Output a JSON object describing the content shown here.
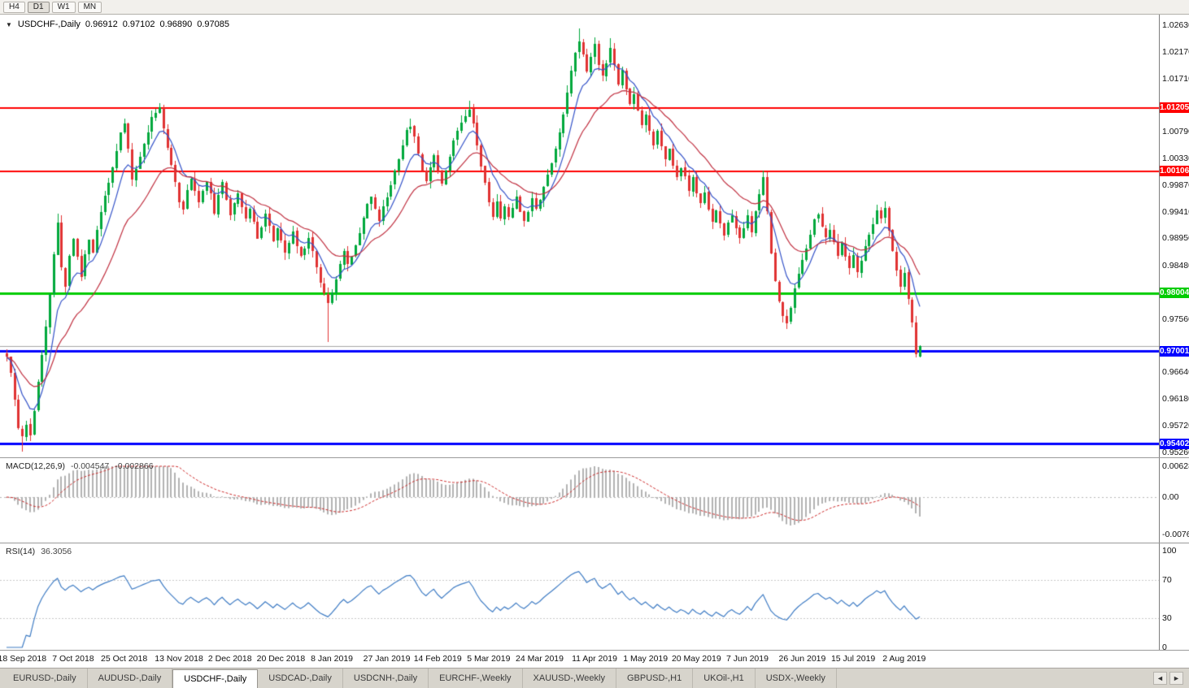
{
  "toolbar": {
    "timeframes": [
      {
        "label": "H4",
        "active": false
      },
      {
        "label": "D1",
        "active": true
      },
      {
        "label": "W1",
        "active": false
      },
      {
        "label": "MN",
        "active": false
      }
    ]
  },
  "chart_header": {
    "menu_icon": "▼",
    "symbol": "USDCHF-,Daily",
    "open": "0.96912",
    "high": "0.97102",
    "low": "0.96890",
    "close": "0.97085"
  },
  "price_axis": {
    "labels": [
      {
        "text": "1.02630",
        "price": 1.0263
      },
      {
        "text": "1.02170",
        "price": 1.0217
      },
      {
        "text": "1.01710",
        "price": 1.0171
      },
      {
        "text": "1.00790",
        "price": 1.0079
      },
      {
        "text": "1.00330",
        "price": 1.0033
      },
      {
        "text": "0.99870",
        "price": 0.9987
      },
      {
        "text": "0.99410",
        "price": 0.9941
      },
      {
        "text": "0.98950",
        "price": 0.9895
      },
      {
        "text": "0.98480",
        "price": 0.9848
      },
      {
        "text": "0.97560",
        "price": 0.9756
      },
      {
        "text": "0.96640",
        "price": 0.9664
      },
      {
        "text": "0.96180",
        "price": 0.9618
      },
      {
        "text": "0.95720",
        "price": 0.9572
      },
      {
        "text": "0.95260",
        "price": 0.9526
      }
    ]
  },
  "levels": [
    {
      "label": "1.01205",
      "price": 1.01205,
      "color": "#ff0000",
      "thickness": 2
    },
    {
      "label": "1.00106",
      "price": 1.00106,
      "color": "#ff0000",
      "thickness": 2
    },
    {
      "label": "0.98004",
      "price": 0.98004,
      "color": "#00cc00",
      "thickness": 3
    },
    {
      "label": "0.97001",
      "price": 0.97001,
      "color": "#0000ff",
      "thickness": 3
    },
    {
      "label": "0.95402",
      "price": 0.95402,
      "color": "#0000ff",
      "thickness": 3
    }
  ],
  "current_price": {
    "value": 0.97085,
    "line_color": "#a6a6a6"
  },
  "macd_panel": {
    "label": "MACD(12,26,9)",
    "main_value": "-0.004547",
    "signal_value": "-0.002866",
    "hist_color": "#b2b2b2",
    "signal_color": "#cc2929",
    "zero_line_color": "#b8b8b8",
    "axis": [
      {
        "text": "0.006286",
        "value": 0.006286
      },
      {
        "text": "0.00",
        "value": 0
      },
      {
        "text": "-0.00762",
        "value": -0.00762
      }
    ]
  },
  "rsi_panel": {
    "label": "RSI(14)",
    "value": "36.3056",
    "line_color": "#3f7cc4",
    "level_line_color": "#c8c8c8",
    "levels": [
      70,
      30
    ],
    "axis": [
      {
        "text": "100",
        "value": 100
      },
      {
        "text": "70",
        "value": 70
      },
      {
        "text": "30",
        "value": 30
      },
      {
        "text": "0",
        "value": 0
      }
    ]
  },
  "time_axis": {
    "labels": [
      "18 Sep 2018",
      "7 Oct 2018",
      "25 Oct 2018",
      "13 Nov 2018",
      "2 Dec 2018",
      "20 Dec 2018",
      "8 Jan 2019",
      "27 Jan 2019",
      "14 Feb 2019",
      "5 Mar 2019",
      "24 Mar 2019",
      "11 Apr 2019",
      "1 May 2019",
      "20 May 2019",
      "7 Jun 2019",
      "26 Jun 2019",
      "15 Jul 2019",
      "2 Aug 2019"
    ]
  },
  "tabs": {
    "items": [
      {
        "label": "EURUSD-,Daily",
        "active": false
      },
      {
        "label": "AUDUSD-,Daily",
        "active": false
      },
      {
        "label": "USDCHF-,Daily",
        "active": true
      },
      {
        "label": "USDCAD-,Daily",
        "active": false
      },
      {
        "label": "USDCNH-,Daily",
        "active": false
      },
      {
        "label": "EURCHF-,Weekly",
        "active": false
      },
      {
        "label": "XAUUSD-,Weekly",
        "active": false
      },
      {
        "label": "GBPUSD-,H1",
        "active": false
      },
      {
        "label": "UKOil-,H1",
        "active": false
      },
      {
        "label": "USDX-,Weekly",
        "active": false
      }
    ],
    "scroll_left": "◄",
    "scroll_right": "►"
  },
  "chart_data": {
    "type": "candlestick",
    "symbol": "USDCHF",
    "period": "Daily",
    "title": "USDCHF-,Daily",
    "ohlc_last": {
      "open": 0.96912,
      "high": 0.97102,
      "low": 0.9689,
      "close": 0.97085
    },
    "ylim": [
      0.9526,
      1.0263
    ],
    "y_step": 0.0046,
    "x_range": [
      "18 Sep 2018",
      "2 Aug 2019"
    ],
    "support_resistance": [
      1.01205,
      1.00106,
      0.98004,
      0.97001,
      0.95402
    ],
    "up_color": "#00a83c",
    "down_color": "#e03232",
    "ma_fast": {
      "period": 8,
      "color": "#3352c8"
    },
    "ma_slow": {
      "period": 21,
      "color": "#c03040"
    },
    "macd_range": [
      -0.00762,
      0.006286
    ],
    "indicators": [
      {
        "name": "MACD",
        "params": [
          12,
          26,
          9
        ],
        "last_main": -0.004547,
        "last_signal": -0.002866
      },
      {
        "name": "RSI",
        "params": [
          14
        ],
        "last": 36.3056
      }
    ],
    "closes": [
      0.969,
      0.966,
      0.9615,
      0.9568,
      0.9556,
      0.9572,
      0.9556,
      0.9598,
      0.9645,
      0.9692,
      0.974,
      0.98,
      0.9868,
      0.992,
      0.9845,
      0.9812,
      0.9865,
      0.9895,
      0.9862,
      0.983,
      0.9868,
      0.9895,
      0.9872,
      0.9908,
      0.994,
      0.9968,
      0.9995,
      1.0015,
      1.0042,
      1.0075,
      1.0092,
      1.0048,
      0.9998,
      1.0012,
      1.0035,
      1.0058,
      1.0082,
      1.0102,
      1.0115,
      1.0122,
      1.0085,
      1.0052,
      1.0018,
      0.999,
      0.9962,
      0.9948,
      0.9975,
      1.0002,
      0.9978,
      0.9955,
      0.9978,
      0.9995,
      0.9968,
      0.9942,
      0.9965,
      0.9988,
      0.9962,
      0.9938,
      0.9958,
      0.9975,
      0.9952,
      0.9928,
      0.9945,
      0.992,
      0.9898,
      0.9918,
      0.9938,
      0.9915,
      0.9892,
      0.9912,
      0.9888,
      0.9868,
      0.9888,
      0.9905,
      0.9882,
      0.9862,
      0.9882,
      0.9898,
      0.9872,
      0.9845,
      0.9822,
      0.98,
      0.9785,
      0.9805,
      0.9828,
      0.9852,
      0.9872,
      0.9848,
      0.9862,
      0.9885,
      0.9908,
      0.9932,
      0.9955,
      0.9968,
      0.9942,
      0.9928,
      0.9948,
      0.9968,
      0.9988,
      1.0012,
      1.0035,
      1.0058,
      1.0078,
      1.0092,
      1.0068,
      1.0042,
      1.0015,
      0.9995,
      1.0018,
      1.0042,
      1.0012,
      0.9992,
      1.0015,
      1.0038,
      1.0062,
      1.0082,
      1.0098,
      1.011,
      1.0122,
      1.0092,
      1.0058,
      1.0022,
      0.9988,
      0.9958,
      0.9935,
      0.9955,
      0.9932,
      0.9952,
      0.9928,
      0.9948,
      0.9968,
      0.9945,
      0.9922,
      0.9945,
      0.9968,
      0.9945,
      0.9965,
      0.9985,
      1.0005,
      1.0025,
      1.0048,
      1.0078,
      1.0112,
      1.0148,
      1.0185,
      1.0218,
      1.0238,
      1.021,
      1.0185,
      1.0208,
      1.0228,
      1.0198,
      1.0175,
      1.0202,
      1.0225,
      1.0192,
      1.016,
      1.0185,
      1.0155,
      1.0125,
      1.0148,
      1.0118,
      1.009,
      1.0112,
      1.0082,
      1.0058,
      1.0078,
      1.0052,
      1.0028,
      1.0048,
      1.0022,
      1.0,
      1.002,
      0.9998,
      0.9978,
      0.9998,
      0.9975,
      0.9952,
      0.9972,
      0.9948,
      0.9925,
      0.9945,
      0.992,
      0.9898,
      0.9918,
      0.9938,
      0.9912,
      0.9892,
      0.9912,
      0.9932,
      0.9908,
      0.9938,
      0.9968,
      1.0,
      0.9945,
      0.9872,
      0.982,
      0.9785,
      0.9762,
      0.9752,
      0.9778,
      0.9805,
      0.9832,
      0.9858,
      0.9882,
      0.9905,
      0.9925,
      0.994,
      0.9915,
      0.9892,
      0.9912,
      0.9888,
      0.9865,
      0.9885,
      0.9862,
      0.9842,
      0.9862,
      0.984,
      0.9858,
      0.9878,
      0.9898,
      0.992,
      0.9942,
      0.9925,
      0.9945,
      0.991,
      0.9875,
      0.984,
      0.9808,
      0.9832,
      0.979,
      0.9748,
      0.9705,
      0.97085
    ],
    "overrides": {
      "4": {
        "low": 0.9527
      },
      "13": {
        "high": 0.9938
      },
      "39": {
        "high": 1.0128
      },
      "82": {
        "low": 0.9716
      },
      "103": {
        "high": 1.0102
      },
      "118": {
        "high": 1.0132
      },
      "146": {
        "high": 1.0258
      },
      "150": {
        "high": 1.0242
      },
      "154": {
        "high": 1.024
      },
      "193": {
        "high": 1.0012
      },
      "199": {
        "low": 0.9738
      },
      "224": {
        "high": 0.9958
      },
      "232": {
        "close": 0.9695,
        "low": 0.9689
      },
      "233": {
        "open": 0.96912,
        "high": 0.97102,
        "low": 0.9689,
        "close": 0.97085
      }
    },
    "jitter": 0.0009,
    "gap": 0.0003,
    "wick": 0.0013,
    "seed": 11
  }
}
